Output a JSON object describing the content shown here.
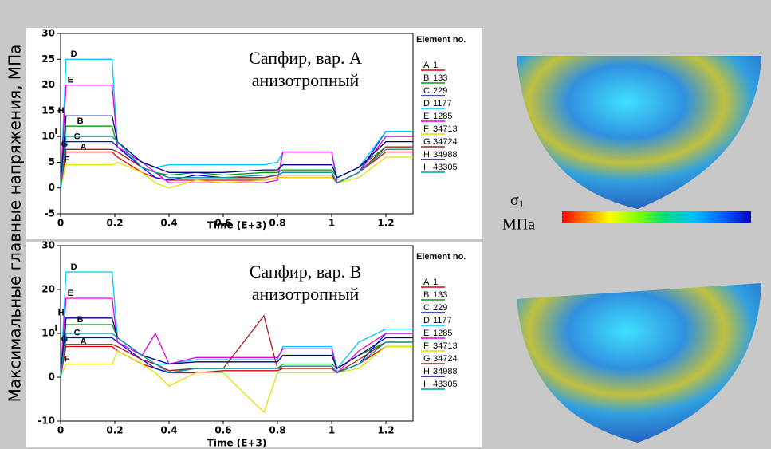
{
  "ylabel": "Максимальные главные напряжения, МПа",
  "colorbar": {
    "symbol": "σ",
    "subscript": "1",
    "unit": "МПа"
  },
  "chart_data": [
    {
      "type": "line",
      "annotation": [
        "Сапфир, вар. А",
        "анизотропный"
      ],
      "xlabel": "Time (E+3)",
      "legend_title": "Element no.",
      "xlim": [
        0,
        1.3
      ],
      "xticks": [
        0,
        0.2,
        0.4,
        0.6,
        0.8,
        1,
        1.2
      ],
      "ylim": [
        -5,
        30
      ],
      "yticks": [
        -5,
        0,
        5,
        10,
        15,
        20,
        25,
        30
      ],
      "x": [
        0,
        0.02,
        0.19,
        0.21,
        0.3,
        0.35,
        0.4,
        0.5,
        0.6,
        0.75,
        0.8,
        0.82,
        1.0,
        1.02,
        1.1,
        1.2,
        1.3
      ],
      "series": [
        {
          "label": "A",
          "name": "1",
          "color": "#e00000",
          "values": [
            0,
            7,
            7,
            6,
            3,
            2,
            1.5,
            1.5,
            1.5,
            1.5,
            2,
            2,
            2,
            1,
            3,
            7,
            7
          ]
        },
        {
          "label": "B",
          "name": "133",
          "color": "#00a000",
          "values": [
            0,
            12,
            12,
            8,
            4,
            3,
            2.5,
            3,
            2.5,
            3,
            3,
            3.5,
            3.5,
            2,
            4,
            8,
            8
          ]
        },
        {
          "label": "C",
          "name": "229",
          "color": "#0000ff",
          "values": [
            0,
            9,
            9,
            8,
            4,
            2,
            1.5,
            2.5,
            2,
            2,
            2.5,
            3,
            3,
            1,
            3,
            11,
            11
          ]
        },
        {
          "label": "D",
          "name": "1177",
          "color": "#00c8ff",
          "values": [
            0,
            25,
            25,
            8,
            5,
            4,
            4.5,
            4.5,
            4.5,
            4.5,
            5,
            7,
            7,
            2,
            4,
            11,
            11
          ]
        },
        {
          "label": "E",
          "name": "1285",
          "color": "#e000e0",
          "values": [
            0,
            20,
            20,
            8,
            5,
            3,
            1,
            1,
            1,
            1,
            1.5,
            7,
            7,
            1,
            3,
            10,
            10
          ]
        },
        {
          "label": "F",
          "name": "34713",
          "color": "#e0e000",
          "values": [
            0,
            4.5,
            4.5,
            5,
            3,
            1,
            0,
            1.5,
            1,
            1.5,
            2,
            2,
            2,
            1,
            2,
            6,
            6
          ]
        },
        {
          "label": "G",
          "name": "34724",
          "color": "#a02020",
          "values": [
            0,
            7.5,
            7.5,
            7,
            4,
            3,
            2,
            2,
            2,
            2,
            2.5,
            2.5,
            2.5,
            1,
            3,
            8,
            8
          ]
        },
        {
          "label": "H",
          "name": "34988",
          "color": "#000080",
          "values": [
            0,
            14,
            14,
            9,
            5,
            4,
            3,
            3,
            3,
            3.5,
            3.5,
            4.5,
            4.5,
            2,
            4,
            9,
            9
          ]
        },
        {
          "label": "I",
          "name": "43305",
          "color": "#00a0a0",
          "values": [
            0,
            10,
            10,
            9,
            4,
            3,
            2,
            2,
            2,
            2.5,
            2.5,
            3,
            3,
            1,
            3,
            7.5,
            7.5
          ]
        }
      ]
    },
    {
      "type": "line",
      "annotation": [
        "Сапфир, вар. В",
        "анизотропный"
      ],
      "xlabel": "Time (E+3)",
      "legend_title": "Element no.",
      "xlim": [
        0,
        1.3
      ],
      "xticks": [
        0,
        0.2,
        0.4,
        0.6,
        0.8,
        1,
        1.2
      ],
      "ylim": [
        -10,
        30
      ],
      "yticks": [
        -10,
        0,
        10,
        20,
        30
      ],
      "x": [
        0,
        0.02,
        0.19,
        0.21,
        0.3,
        0.35,
        0.4,
        0.5,
        0.6,
        0.75,
        0.8,
        0.82,
        1.0,
        1.02,
        1.1,
        1.2,
        1.3
      ],
      "series": [
        {
          "label": "A",
          "name": "1",
          "color": "#e00000",
          "values": [
            0,
            7,
            7,
            6,
            3,
            2,
            1,
            1,
            1.5,
            1.5,
            1.5,
            2,
            2,
            1,
            3,
            7,
            7
          ]
        },
        {
          "label": "B",
          "name": "133",
          "color": "#00a000",
          "values": [
            0,
            12,
            12,
            9,
            5,
            3,
            1.5,
            2,
            2,
            2,
            2,
            3,
            3,
            2,
            5,
            8,
            8
          ]
        },
        {
          "label": "C",
          "name": "229",
          "color": "#0000ff",
          "values": [
            0,
            9,
            9,
            8,
            4,
            2,
            1,
            2,
            2,
            2,
            2,
            2.5,
            2.5,
            1,
            3,
            10,
            10
          ]
        },
        {
          "label": "D",
          "name": "1177",
          "color": "#00c8ff",
          "values": [
            0,
            24,
            24,
            9,
            5,
            3,
            3,
            4,
            4,
            4,
            4,
            7,
            7,
            2,
            8,
            11,
            11
          ]
        },
        {
          "label": "E",
          "name": "1285",
          "color": "#e000e0",
          "values": [
            0,
            18,
            18,
            8,
            5,
            10,
            3,
            4.5,
            4.5,
            4.5,
            4.5,
            6.5,
            6.5,
            1,
            6,
            10,
            10
          ]
        },
        {
          "label": "F",
          "name": "34713",
          "color": "#e0e000",
          "values": [
            0,
            3,
            3,
            6,
            3,
            1,
            -2,
            1,
            1,
            -8,
            1,
            1,
            1,
            1,
            2,
            7,
            7
          ]
        },
        {
          "label": "G",
          "name": "34724",
          "color": "#a02020",
          "values": [
            0,
            7.5,
            7.5,
            7,
            4,
            3,
            1.5,
            2,
            2,
            14,
            2,
            2,
            2,
            1,
            4,
            8,
            8
          ]
        },
        {
          "label": "H",
          "name": "34988",
          "color": "#000080",
          "values": [
            0,
            13.5,
            13.5,
            9,
            5,
            4,
            3,
            3.5,
            3.5,
            3.5,
            3.5,
            5,
            5,
            2,
            5,
            9,
            9
          ]
        },
        {
          "label": "I",
          "name": "43305",
          "color": "#00a0a0",
          "values": [
            0,
            10,
            10,
            9,
            5,
            3,
            1,
            2,
            2,
            2,
            2,
            2.5,
            2.5,
            1,
            3,
            8,
            8
          ]
        }
      ]
    }
  ]
}
